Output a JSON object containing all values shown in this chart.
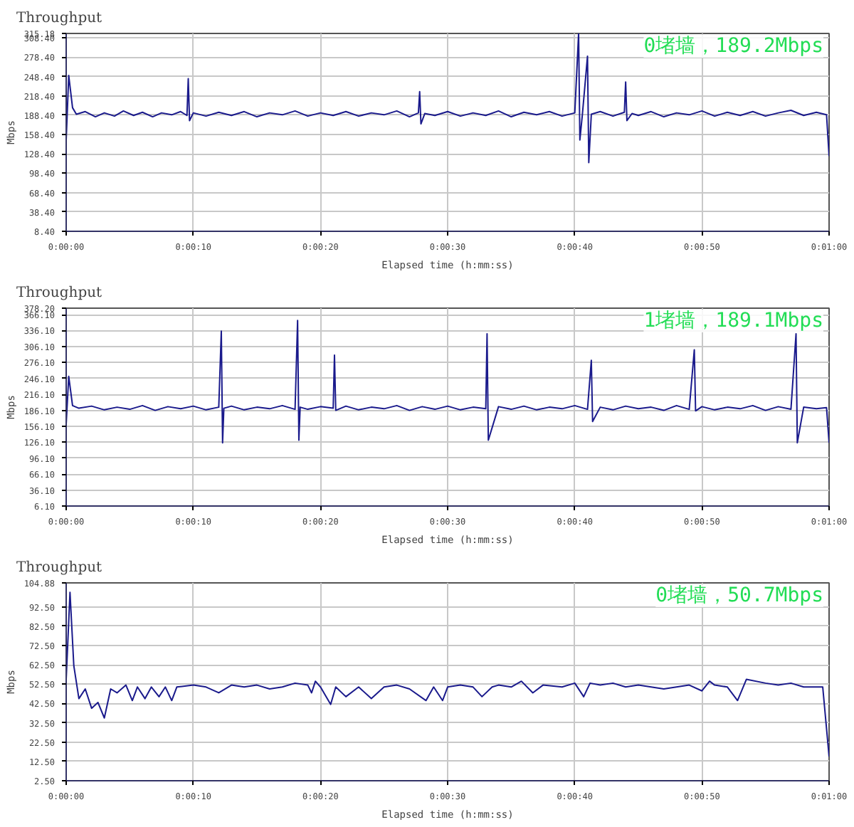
{
  "chart_data": [
    {
      "type": "line",
      "title": "Throughput",
      "xlabel": "Elapsed time (h:mm:ss)",
      "ylabel": "Mbps",
      "annotations": [
        "0堵墙，189.2Mbps"
      ],
      "grid": true,
      "marker": "none",
      "line_style": "solid",
      "xlim": [
        0,
        60
      ],
      "xticks": [
        {
          "value": 0,
          "label": "0:00:00"
        },
        {
          "value": 10,
          "label": "0:00:10"
        },
        {
          "value": 20,
          "label": "0:00:20"
        },
        {
          "value": 30,
          "label": "0:00:30"
        },
        {
          "value": 40,
          "label": "0:00:40"
        },
        {
          "value": 50,
          "label": "0:00:50"
        },
        {
          "value": 60,
          "label": "0:01:00"
        }
      ],
      "ylim": [
        8.4,
        315.18
      ],
      "yticks": [
        {
          "value": 8.4,
          "label": "8.40"
        },
        {
          "value": 38.4,
          "label": "38.40"
        },
        {
          "value": 68.4,
          "label": "68.40"
        },
        {
          "value": 98.4,
          "label": "98.40"
        },
        {
          "value": 128.4,
          "label": "128.40"
        },
        {
          "value": 158.4,
          "label": "158.40"
        },
        {
          "value": 188.4,
          "label": "188.40"
        },
        {
          "value": 218.4,
          "label": "218.40"
        },
        {
          "value": 248.4,
          "label": "248.40"
        },
        {
          "value": 278.4,
          "label": "278.40"
        },
        {
          "value": 308.4,
          "label": "308.40"
        },
        {
          "value": 315.18,
          "label": "315.18"
        }
      ],
      "x": [
        0,
        0.2,
        0.5,
        0.8,
        1.5,
        2.3,
        3,
        3.8,
        4.5,
        5.3,
        6,
        6.8,
        7.5,
        8.3,
        9,
        9.5,
        9.6,
        9.7,
        10,
        11,
        12,
        13,
        14,
        15,
        16,
        17,
        18,
        19,
        20,
        21,
        22,
        23,
        24,
        25,
        26,
        27,
        27.7,
        27.8,
        27.9,
        28.2,
        29,
        30,
        31,
        32,
        33,
        34,
        35,
        36,
        37,
        38,
        39,
        40,
        40.3,
        40.4,
        40.6,
        41,
        41.1,
        41.3,
        42,
        43,
        43.9,
        44,
        44.1,
        44.5,
        45,
        46,
        47,
        48,
        49,
        50,
        51,
        52,
        53,
        54,
        55,
        56,
        57,
        58,
        59,
        59.8,
        60
      ],
      "series": [
        {
          "color": "#1a1a8c",
          "values": [
            150,
            250,
            200,
            190,
            194,
            186,
            192,
            187,
            195,
            188,
            193,
            186,
            192,
            189,
            194,
            188,
            245,
            180,
            192,
            187,
            193,
            188,
            194,
            186,
            192,
            189,
            195,
            187,
            192,
            188,
            194,
            187,
            192,
            189,
            195,
            186,
            192,
            225,
            175,
            191,
            188,
            194,
            187,
            192,
            188,
            195,
            186,
            193,
            189,
            194,
            187,
            192,
            315,
            150,
            190,
            280,
            115,
            190,
            194,
            187,
            193,
            240,
            180,
            191,
            188,
            194,
            186,
            192,
            189,
            195,
            187,
            193,
            188,
            194,
            187,
            192,
            196,
            188,
            193,
            189,
            125
          ]
        }
      ]
    },
    {
      "type": "line",
      "title": "Throughput",
      "xlabel": "Elapsed time (h:mm:ss)",
      "ylabel": "Mbps",
      "annotations": [
        "1堵墙，189.1Mbps"
      ],
      "grid": true,
      "marker": "none",
      "line_style": "solid",
      "xlim": [
        0,
        60
      ],
      "xticks": [
        {
          "value": 0,
          "label": "0:00:00"
        },
        {
          "value": 10,
          "label": "0:00:10"
        },
        {
          "value": 20,
          "label": "0:00:20"
        },
        {
          "value": 30,
          "label": "0:00:30"
        },
        {
          "value": 40,
          "label": "0:00:40"
        },
        {
          "value": 50,
          "label": "0:00:50"
        },
        {
          "value": 60,
          "label": "0:01:00"
        }
      ],
      "ylim": [
        6.1,
        378.2
      ],
      "yticks": [
        {
          "value": 6.1,
          "label": "6.10"
        },
        {
          "value": 36.1,
          "label": "36.10"
        },
        {
          "value": 66.1,
          "label": "66.10"
        },
        {
          "value": 96.1,
          "label": "96.10"
        },
        {
          "value": 126.1,
          "label": "126.10"
        },
        {
          "value": 156.1,
          "label": "156.10"
        },
        {
          "value": 186.1,
          "label": "186.10"
        },
        {
          "value": 216.1,
          "label": "216.10"
        },
        {
          "value": 246.1,
          "label": "246.10"
        },
        {
          "value": 276.1,
          "label": "276.10"
        },
        {
          "value": 306.1,
          "label": "306.10"
        },
        {
          "value": 336.1,
          "label": "336.10"
        },
        {
          "value": 366.1,
          "label": "366.10"
        },
        {
          "value": 378.2,
          "label": "378.20"
        }
      ],
      "x": [
        0,
        0.2,
        0.5,
        1,
        2,
        3,
        4,
        5,
        6,
        7,
        8,
        9,
        10,
        11,
        12,
        12.2,
        12.3,
        12.4,
        13,
        14,
        15,
        16,
        17,
        18,
        18.2,
        18.3,
        18.4,
        19,
        20,
        21,
        21.1,
        21.2,
        22,
        23,
        24,
        25,
        26,
        27,
        28,
        29,
        30,
        31,
        32,
        33,
        33.1,
        33.2,
        34,
        35,
        36,
        37,
        38,
        39,
        40,
        41,
        41.3,
        41.4,
        42,
        43,
        44,
        45,
        46,
        47,
        48,
        49,
        49.4,
        49.5,
        50,
        51,
        52,
        53,
        54,
        55,
        56,
        57,
        57.4,
        57.5,
        58,
        59,
        59.8,
        60
      ],
      "series": [
        {
          "color": "#1a1a8c",
          "values": [
            160,
            250,
            195,
            190,
            194,
            187,
            192,
            188,
            195,
            186,
            193,
            189,
            194,
            187,
            192,
            335,
            125,
            190,
            194,
            187,
            192,
            189,
            195,
            188,
            355,
            130,
            192,
            188,
            193,
            190,
            290,
            186,
            194,
            187,
            192,
            189,
            195,
            186,
            193,
            188,
            194,
            187,
            192,
            189,
            330,
            130,
            193,
            188,
            194,
            187,
            192,
            189,
            195,
            188,
            280,
            165,
            192,
            187,
            194,
            189,
            192,
            186,
            195,
            188,
            300,
            185,
            193,
            187,
            192,
            189,
            195,
            186,
            193,
            188,
            330,
            125,
            192,
            189,
            191,
            125
          ]
        }
      ]
    },
    {
      "type": "line",
      "title": "Throughput",
      "xlabel": "Elapsed time (h:mm:ss)",
      "ylabel": "Mbps",
      "annotations": [
        "0堵墙，50.7Mbps"
      ],
      "grid": true,
      "marker": "none",
      "line_style": "solid",
      "xlim": [
        0,
        60
      ],
      "xticks": [
        {
          "value": 0,
          "label": "0:00:00"
        },
        {
          "value": 10,
          "label": "0:00:10"
        },
        {
          "value": 20,
          "label": "0:00:20"
        },
        {
          "value": 30,
          "label": "0:00:30"
        },
        {
          "value": 40,
          "label": "0:00:40"
        },
        {
          "value": 50,
          "label": "0:00:50"
        },
        {
          "value": 60,
          "label": "0:01:00"
        }
      ],
      "ylim": [
        2.5,
        104.88
      ],
      "yticks": [
        {
          "value": 2.5,
          "label": "2.50"
        },
        {
          "value": 12.5,
          "label": "12.50"
        },
        {
          "value": 22.5,
          "label": "22.50"
        },
        {
          "value": 32.5,
          "label": "32.50"
        },
        {
          "value": 42.5,
          "label": "42.50"
        },
        {
          "value": 52.5,
          "label": "52.50"
        },
        {
          "value": 62.5,
          "label": "62.50"
        },
        {
          "value": 72.5,
          "label": "72.50"
        },
        {
          "value": 82.5,
          "label": "82.50"
        },
        {
          "value": 92.5,
          "label": "92.50"
        },
        {
          "value": 104.88,
          "label": "104.88"
        }
      ],
      "x": [
        0,
        0.3,
        0.6,
        1,
        1.5,
        2,
        2.5,
        3,
        3.5,
        4,
        4.7,
        5.2,
        5.6,
        6.2,
        6.7,
        7.3,
        7.8,
        8.3,
        8.7,
        10,
        11,
        12,
        13,
        14,
        15,
        16,
        17,
        18,
        19,
        19.3,
        19.6,
        20,
        20.8,
        21.2,
        22,
        23,
        24,
        25,
        26,
        27,
        28.3,
        28.9,
        29.6,
        30,
        31,
        32,
        32.7,
        33.5,
        34,
        35,
        35.8,
        36.7,
        37.5,
        39,
        40,
        40.7,
        41.2,
        42,
        43,
        44,
        45,
        46,
        47,
        48,
        49,
        50,
        50.6,
        51,
        52,
        52.8,
        53.5,
        55,
        56,
        57,
        58,
        59.5,
        60
      ],
      "series": [
        {
          "color": "#1a1a8c",
          "values": [
            55,
            100,
            62,
            45,
            50,
            40,
            43,
            35,
            50,
            48,
            52,
            44,
            51,
            45,
            51,
            46,
            51,
            44,
            51,
            52,
            51,
            48,
            52,
            51,
            52,
            50,
            51,
            53,
            52,
            48,
            54,
            51,
            42,
            51,
            46,
            51,
            45,
            51,
            52,
            50,
            44,
            51,
            44,
            51,
            52,
            51,
            46,
            51,
            52,
            51,
            54,
            48,
            52,
            51,
            53,
            46,
            53,
            52,
            53,
            51,
            52,
            51,
            50,
            51,
            52,
            49,
            54,
            52,
            51,
            44,
            55,
            53,
            52,
            53,
            51,
            51,
            15
          ]
        }
      ]
    }
  ]
}
